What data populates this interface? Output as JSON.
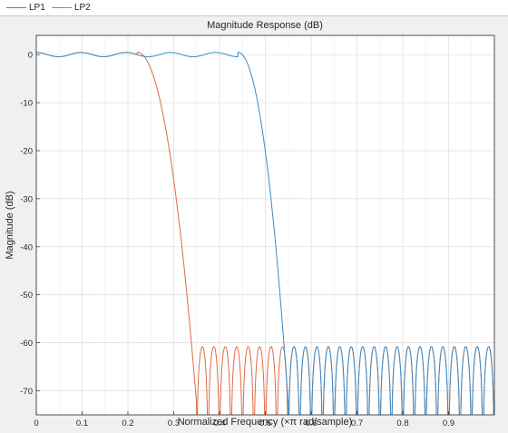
{
  "legend": {
    "items": [
      {
        "label": "LP1",
        "color": "#3a8cc8"
      },
      {
        "label": "LP2",
        "color": "#e06a44"
      }
    ]
  },
  "chart_data": {
    "type": "line",
    "title": "Magnitude Response (dB)",
    "xlabel": "Normalized Frequency (×π rad/sample)",
    "ylabel": "Magnitude (dB)",
    "xlim": [
      0,
      1
    ],
    "ylim": [
      -75,
      4
    ],
    "xticks": [
      0,
      0.1,
      0.2,
      0.3,
      0.4,
      0.5,
      0.6,
      0.7,
      0.8,
      0.9
    ],
    "xtick_labels": [
      "0",
      "0.1",
      "0.2",
      "0.3",
      "0.4",
      "0.5",
      "0.6",
      "0.7",
      "0.8",
      "0.9"
    ],
    "yticks": [
      0,
      -10,
      -20,
      -30,
      -40,
      -50,
      -60,
      -70
    ],
    "ytick_labels": [
      "0",
      "-10",
      "-20",
      "-30",
      "-40",
      "-50",
      "-60",
      "-70"
    ],
    "grid": true,
    "series": [
      {
        "name": "LP1",
        "color": "#3a8cc8",
        "passband_edge": 0.44,
        "stopband_edge": 0.55,
        "passband_ripple_db": 0.5,
        "stopband_peak_db": -60.8,
        "stopband_lobes": 18
      },
      {
        "name": "LP2",
        "color": "#e06a44",
        "passband_edge": 0.22,
        "stopband_edge": 0.35,
        "passband_ripple_db": 0.5,
        "stopband_peak_db": -60.8,
        "stopband_lobes": 26
      }
    ]
  }
}
